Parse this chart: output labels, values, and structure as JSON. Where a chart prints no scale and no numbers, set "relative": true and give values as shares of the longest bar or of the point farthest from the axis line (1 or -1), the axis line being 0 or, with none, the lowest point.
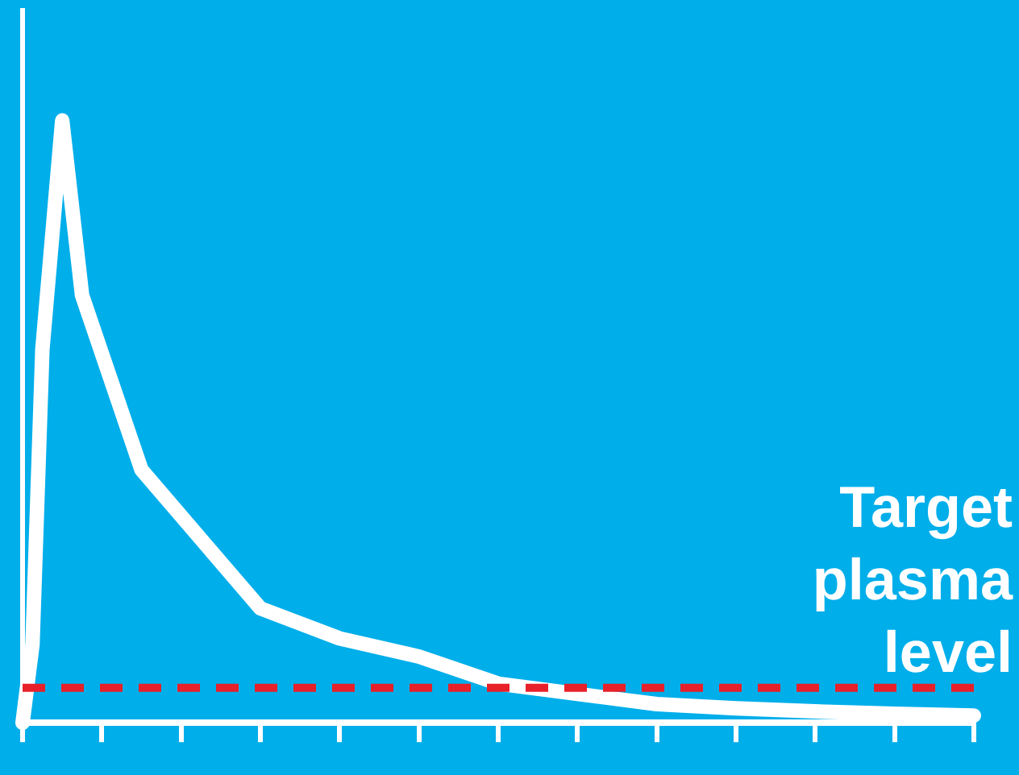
{
  "chart_data": {
    "type": "line",
    "relative": true,
    "categories": [
      null,
      null,
      null,
      null,
      null,
      null,
      null,
      null,
      null,
      null,
      null,
      null,
      null,
      null,
      null,
      null,
      null,
      null,
      null,
      null,
      null,
      null,
      null,
      null,
      null,
      null,
      null,
      null,
      null,
      null,
      null,
      null,
      null,
      null,
      null,
      null,
      null,
      null,
      null,
      null,
      null,
      null,
      null,
      null,
      null,
      null,
      null,
      null,
      null,
      null,
      null,
      null,
      null,
      null,
      null,
      null,
      null,
      null,
      null,
      null,
      null,
      null,
      null,
      null,
      null,
      null,
      null,
      null,
      null,
      null,
      null,
      null,
      null,
      null,
      null,
      null,
      null,
      null,
      null,
      null,
      null,
      null,
      null,
      null,
      null,
      null,
      null,
      null,
      null,
      null,
      null,
      null,
      null,
      null,
      null,
      null,
      null
    ],
    "grid": false,
    "legend": false,
    "marker": "none",
    "line_style": "solid",
    "series": [
      {
        "color": "#ffffff",
        "values": [
          0,
          0.13,
          0.62,
          null,
          1,
          null,
          0.71,
          null,
          null,
          null,
          null,
          null,
          0.42,
          null,
          null,
          null,
          null,
          null,
          null,
          null,
          null,
          null,
          null,
          null,
          0.19,
          null,
          null,
          null,
          null,
          null,
          null,
          null,
          0.14,
          null,
          null,
          null,
          null,
          null,
          null,
          null,
          0.11,
          null,
          null,
          null,
          null,
          null,
          null,
          null,
          0.065,
          null,
          null,
          null,
          null,
          null,
          null,
          null,
          0.048,
          null,
          null,
          null,
          null,
          null,
          null,
          null,
          0.031,
          null,
          null,
          null,
          null,
          null,
          null,
          null,
          0.024,
          null,
          null,
          null,
          null,
          null,
          null,
          null,
          0.019,
          null,
          null,
          null,
          null,
          null,
          null,
          null,
          0.015,
          null,
          null,
          null,
          null,
          null,
          null,
          null,
          0.012
        ]
      }
    ],
    "ref_lines": [
      {
        "axis": "y",
        "value": 0.058,
        "label": "Target plasma level",
        "color": "#e8202a",
        "line_style": "dashed"
      }
    ]
  }
}
